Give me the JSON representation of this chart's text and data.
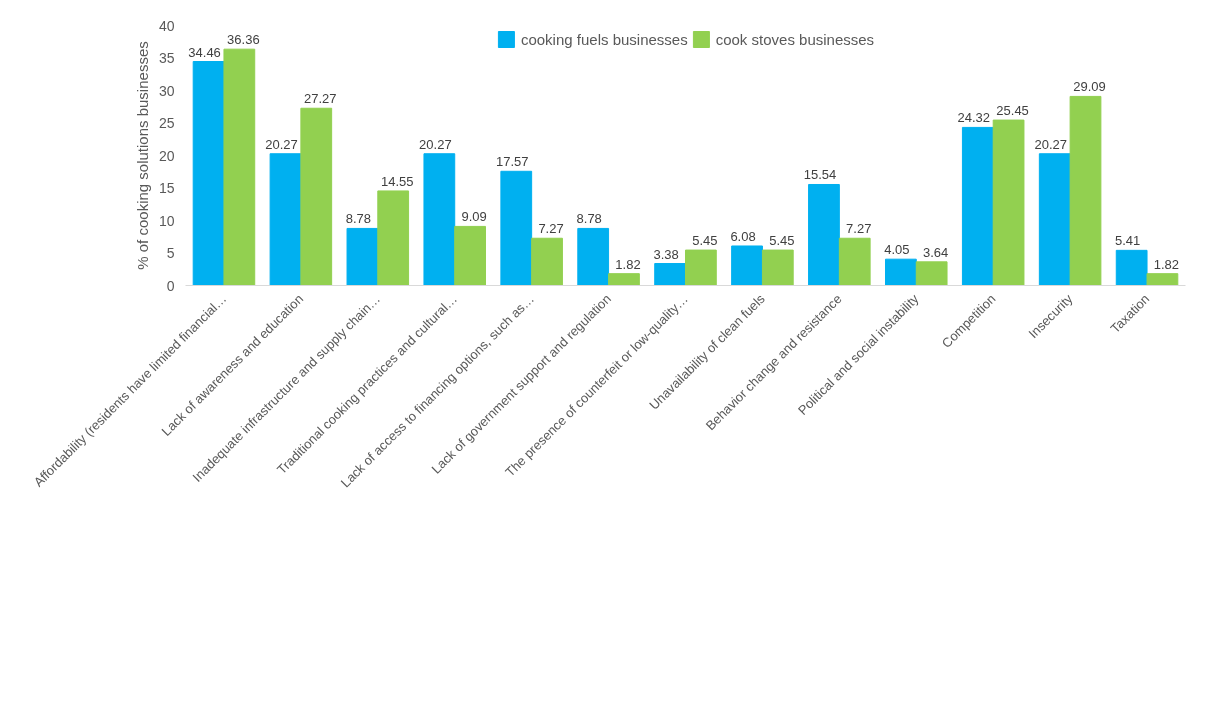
{
  "chart_data": {
    "type": "bar",
    "ylabel": "% of cooking solutions businesses",
    "categories": [
      "Affordability (residents have limited financial…",
      "Lack of awareness and education",
      "Inadequate infrastructure and supply chain…",
      "Traditional cooking practices and cultural…",
      "Lack of access to financing options, such as…",
      "Lack of government support and regulation",
      "The presence of counterfeit or low-quality…",
      "Unavailability of clean fuels",
      "Behavior change and resistance",
      "Political and social instability",
      "Competition",
      "Insecurity",
      "Taxation"
    ],
    "series": [
      {
        "name": "cooking fuels businesses",
        "color": "#00b0f0",
        "values": [
          34.46,
          20.27,
          8.78,
          20.27,
          17.57,
          8.78,
          3.38,
          6.08,
          15.54,
          4.05,
          24.32,
          20.27,
          5.41
        ]
      },
      {
        "name": "cook stoves businesses",
        "color": "#92d050",
        "values": [
          36.36,
          27.27,
          14.55,
          9.09,
          7.27,
          1.82,
          5.45,
          5.45,
          7.27,
          3.64,
          25.45,
          29.09,
          1.82
        ]
      }
    ],
    "ylim": [
      0,
      40
    ],
    "yticks": [
      0,
      5,
      10,
      15,
      20,
      25,
      30,
      35,
      40
    ],
    "grid": false,
    "legend": "top",
    "data_labels": true
  }
}
